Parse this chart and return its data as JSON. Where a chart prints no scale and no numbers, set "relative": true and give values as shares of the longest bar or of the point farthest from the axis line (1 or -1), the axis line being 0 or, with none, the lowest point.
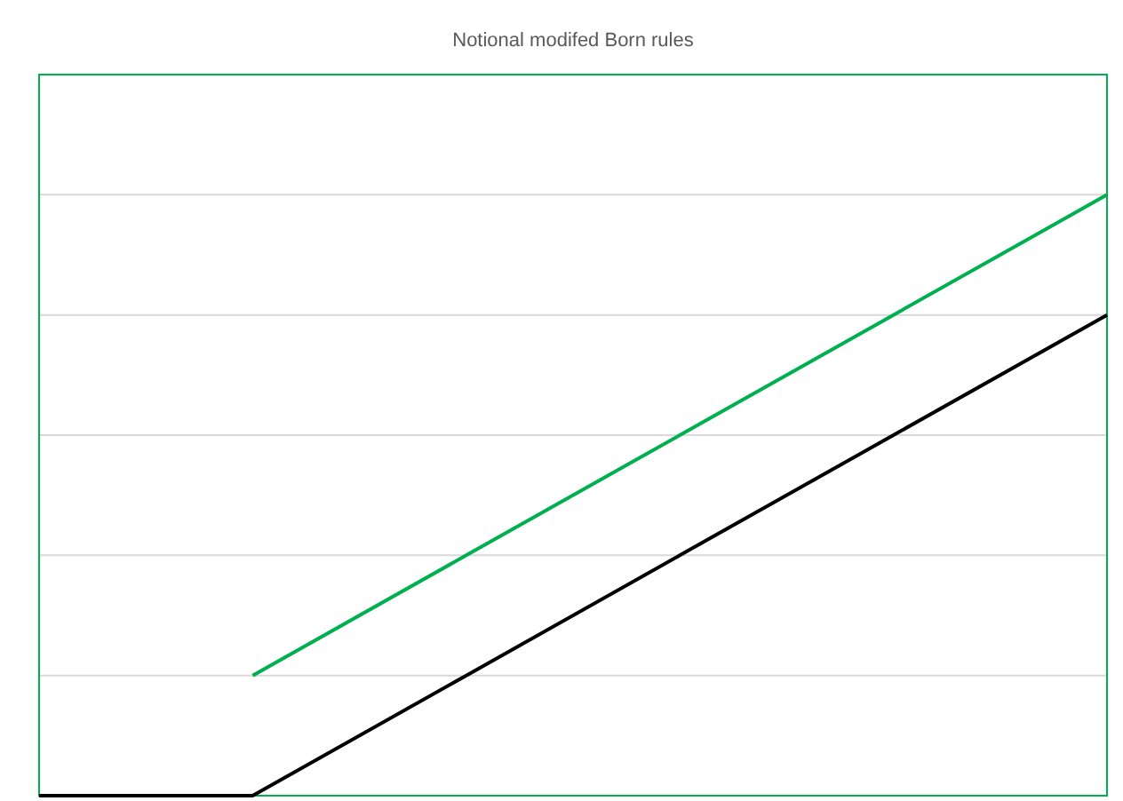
{
  "chart_data": {
    "type": "line",
    "title": "Notional modifed Born rules",
    "relative": true,
    "categories": [
      null,
      null,
      null,
      null,
      null,
      null
    ],
    "grid": "y",
    "marker": "none",
    "line_style": "solid",
    "series": [
      {
        "color": "#00b050",
        "values": [
          null,
          0.2,
          0.4,
          0.6,
          0.8,
          1
        ]
      },
      {
        "color": "#000000",
        "values": [
          0,
          0,
          0.2,
          0.4,
          0.6,
          0.8
        ]
      }
    ]
  }
}
